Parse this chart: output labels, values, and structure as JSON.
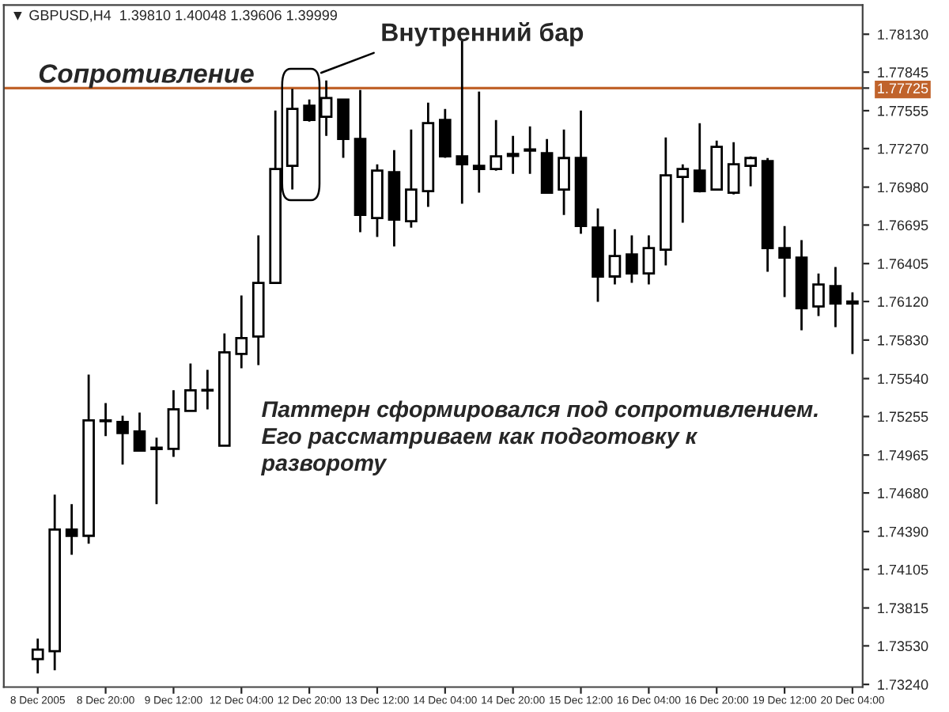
{
  "chart_data": {
    "type": "candlestick",
    "title": "▼ GBPUSD,H4  1.39810 1.40048 1.39606 1.39999",
    "categories": [
      "8 Dec 2005",
      null,
      null,
      null,
      "8 Dec 20:00",
      null,
      null,
      null,
      "9 Dec 12:00",
      null,
      null,
      null,
      "12 Dec 04:00",
      null,
      null,
      null,
      "12 Dec 20:00",
      null,
      null,
      null,
      "13 Dec 12:00",
      null,
      null,
      null,
      "14 Dec 04:00",
      null,
      null,
      null,
      "14 Dec 20:00",
      null,
      null,
      null,
      "15 Dec 12:00",
      null,
      null,
      null,
      "16 Dec 04:00",
      null,
      null,
      null,
      "16 Dec 20:00",
      null,
      null,
      null,
      "19 Dec 12:00",
      null,
      null,
      null,
      "20 Dec 04:00"
    ],
    "ohlc": [
      [
        1.7343,
        1.73585,
        1.73323,
        1.73502
      ],
      [
        1.7349,
        1.74667,
        1.73347,
        1.74405
      ],
      [
        1.74405,
        1.74596,
        1.74215,
        1.74358
      ],
      [
        1.74358,
        1.7557,
        1.74298,
        1.75226
      ],
      [
        1.7522,
        1.75356,
        1.75107,
        1.75226
      ],
      [
        1.75214,
        1.75261,
        1.74893,
        1.75131
      ],
      [
        1.75142,
        1.75285,
        1.7499,
        1.74999
      ],
      [
        1.75011,
        1.75095,
        1.74596,
        1.7502
      ],
      [
        1.75012,
        1.75452,
        1.74952,
        1.75309
      ],
      [
        1.75297,
        1.75654,
        1.7529,
        1.75452
      ],
      [
        1.7545,
        1.75606,
        1.75309,
        1.75455
      ],
      [
        1.75036,
        1.7588,
        1.7503,
        1.75737
      ],
      [
        1.75725,
        1.76165,
        1.75618,
        1.75844
      ],
      [
        1.75856,
        1.76617,
        1.75642,
        1.7626
      ],
      [
        1.7626,
        1.77556,
        1.76255,
        1.77116
      ],
      [
        1.7714,
        1.7772,
        1.76962,
        1.77568
      ],
      [
        1.77592,
        1.7764,
        1.77473,
        1.77485
      ],
      [
        1.77509,
        1.77782,
        1.77366,
        1.77651
      ],
      [
        1.77639,
        1.77645,
        1.772,
        1.77342
      ],
      [
        1.77342,
        1.77711,
        1.76641,
        1.76771
      ],
      [
        1.76748,
        1.77152,
        1.76605,
        1.77104
      ],
      [
        1.77092,
        1.77259,
        1.76534,
        1.76736
      ],
      [
        1.76724,
        1.77413,
        1.76676,
        1.76962
      ],
      [
        1.7695,
        1.77616,
        1.76831,
        1.77461
      ],
      [
        1.77485,
        1.77568,
        1.772,
        1.77211
      ],
      [
        1.77211,
        1.78079,
        1.76855,
        1.77152
      ],
      [
        1.7714,
        1.77699,
        1.76938,
        1.77116
      ],
      [
        1.77116,
        1.77485,
        1.77104,
        1.77211
      ],
      [
        1.77215,
        1.77366,
        1.7708,
        1.7723
      ],
      [
        1.77255,
        1.77437,
        1.7708,
        1.77263
      ],
      [
        1.77235,
        1.77342,
        1.7693,
        1.76938
      ],
      [
        1.76962,
        1.77413,
        1.76771,
        1.77199
      ],
      [
        1.77199,
        1.77556,
        1.76629,
        1.76688
      ],
      [
        1.76676,
        1.76819,
        1.76117,
        1.76308
      ],
      [
        1.76308,
        1.76664,
        1.76248,
        1.76462
      ],
      [
        1.76474,
        1.76617,
        1.7626,
        1.76331
      ],
      [
        1.76331,
        1.76617,
        1.76248,
        1.76522
      ],
      [
        1.7651,
        1.77354,
        1.76391,
        1.77069
      ],
      [
        1.77057,
        1.77152,
        1.76712,
        1.77116
      ],
      [
        1.77104,
        1.77461,
        1.7694,
        1.7695
      ],
      [
        1.76962,
        1.7733,
        1.76955,
        1.77283
      ],
      [
        1.76938,
        1.77318,
        1.76926,
        1.77152
      ],
      [
        1.7714,
        1.77211,
        1.76986,
        1.77199
      ],
      [
        1.77176,
        1.77199,
        1.76343,
        1.76522
      ],
      [
        1.76522,
        1.76688,
        1.76153,
        1.7645
      ],
      [
        1.7645,
        1.76581,
        1.75903,
        1.7607
      ],
      [
        1.76082,
        1.76331,
        1.7601,
        1.76248
      ],
      [
        1.76236,
        1.76379,
        1.75927,
        1.76105
      ],
      [
        1.76105,
        1.76189,
        1.75725,
        1.7612
      ]
    ],
    "ylim": [
      1.7322,
      1.7835
    ],
    "yticks": [
      {
        "value": 1.7813,
        "label": "1.78130"
      },
      {
        "value": 1.77845,
        "label": "1.77845"
      },
      {
        "value": 1.77725,
        "label": "1.77725"
      },
      {
        "value": 1.77555,
        "label": "1.77555"
      },
      {
        "value": 1.7727,
        "label": "1.77270"
      },
      {
        "value": 1.7698,
        "label": "1.76980"
      },
      {
        "value": 1.76695,
        "label": "1.76695"
      },
      {
        "value": 1.76405,
        "label": "1.76405"
      },
      {
        "value": 1.7612,
        "label": "1.76120"
      },
      {
        "value": 1.7583,
        "label": "1.75830"
      },
      {
        "value": 1.7554,
        "label": "1.75540"
      },
      {
        "value": 1.75255,
        "label": "1.75255"
      },
      {
        "value": 1.74965,
        "label": "1.74965"
      },
      {
        "value": 1.7468,
        "label": "1.74680"
      },
      {
        "value": 1.7439,
        "label": "1.74390"
      },
      {
        "value": 1.74105,
        "label": "1.74105"
      },
      {
        "value": 1.73815,
        "label": "1.73815"
      },
      {
        "value": 1.7353,
        "label": "1.73530"
      },
      {
        "value": 1.7324,
        "label": "1.73240"
      }
    ],
    "ref_lines": [
      {
        "axis": "y",
        "value": 1.77725,
        "label": "Сопротивление",
        "color": "#c0632b"
      }
    ],
    "annotations": [
      "Внутренний бар",
      "Паттерн сформировался под сопротивлением.\nЕго рассматриваем как подготовку к\nразвороту"
    ],
    "grid": false,
    "legend": false
  }
}
